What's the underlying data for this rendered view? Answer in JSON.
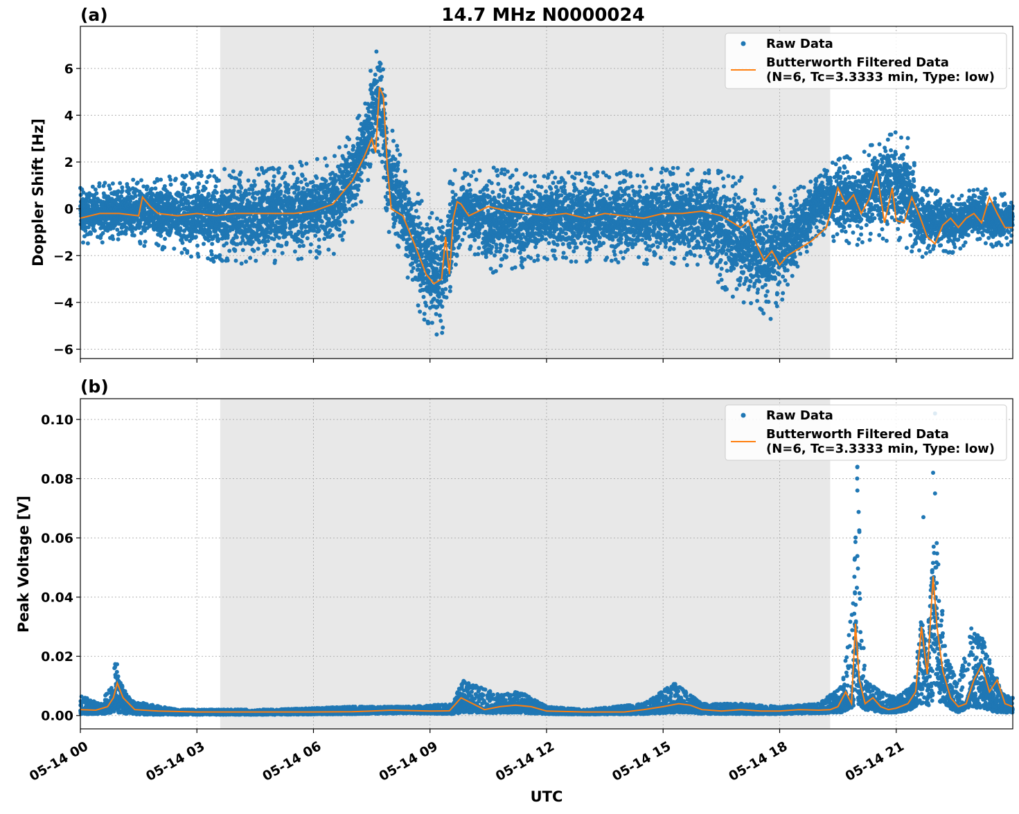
{
  "figure": {
    "title": "14.7 MHz N0000024",
    "xlabel": "UTC"
  },
  "colors": {
    "raw": "#1f77b4",
    "filtered": "#ff7f0e",
    "night_shading": "#e8e8e8"
  },
  "chart_data": [
    {
      "type": "scatter",
      "panel_label": "(a)",
      "ylabel": "Doppler Shift [Hz]",
      "xlim_hours": [
        0,
        24
      ],
      "ylim": [
        -6.4,
        7.8
      ],
      "yticks": [
        -6,
        -4,
        -2,
        0,
        2,
        4,
        6
      ],
      "ytick_labels": [
        "−6",
        "−4",
        "−2",
        "0",
        "2",
        "4",
        "6"
      ],
      "grid": true,
      "legend_position": "top-right",
      "legend": {
        "raw_label": "Raw Data",
        "filtered_label_line1": "Butterworth Filtered Data",
        "filtered_label_line2": "(N=6, Tc=3.3333 min, Type: low)"
      },
      "shaded_span_hours": [
        3.6,
        19.3
      ],
      "series": [
        {
          "name": "Raw Data",
          "style": "points",
          "envelope_hours": [
            0,
            1,
            1.6,
            2.5,
            3.5,
            5,
            6.5,
            7,
            7.3,
            7.6,
            7.75,
            7.9,
            8.3,
            8.8,
            9.3,
            9.55,
            9.8,
            10.5,
            12,
            14,
            16,
            17,
            17.4,
            17.8,
            18.2,
            19,
            19.5,
            20,
            20.5,
            20.9,
            21.3,
            21.6,
            22,
            22.5,
            23,
            23.5,
            24
          ],
          "envelope_upper": [
            1.0,
            1.2,
            1.3,
            1.5,
            1.7,
            1.8,
            2.3,
            3.5,
            4.8,
            6.8,
            7.2,
            4.0,
            2.0,
            0.3,
            -0.5,
            1.8,
            1.5,
            1.8,
            1.6,
            1.6,
            1.9,
            1.5,
            0.8,
            1.2,
            0.6,
            1.5,
            2.4,
            2.2,
            3.0,
            3.6,
            3.2,
            1.0,
            0.8,
            0.6,
            0.9,
            0.8,
            0.6
          ],
          "envelope_lower": [
            -1.5,
            -1.4,
            -1.6,
            -1.9,
            -2.3,
            -2.4,
            -2.0,
            -0.8,
            0.5,
            2.5,
            2.2,
            -0.8,
            -2.5,
            -4.8,
            -5.6,
            -3.5,
            -1.3,
            -2.8,
            -2.3,
            -2.3,
            -2.5,
            -4.2,
            -4.5,
            -4.8,
            -3.5,
            -1.0,
            -1.5,
            -1.6,
            -1.2,
            -1.5,
            -1.7,
            -2.2,
            -1.7,
            -2.0,
            -1.3,
            -1.7,
            -1.5
          ]
        },
        {
          "name": "Butterworth Filtered Data",
          "style": "line",
          "x_hours": [
            0,
            0.5,
            1,
            1.5,
            1.6,
            1.8,
            2,
            2.5,
            3,
            3.5,
            4,
            4.5,
            5,
            5.5,
            6,
            6.5,
            7,
            7.3,
            7.5,
            7.6,
            7.7,
            7.8,
            7.9,
            8.0,
            8.3,
            8.6,
            8.9,
            9.1,
            9.3,
            9.4,
            9.5,
            9.6,
            9.7,
            9.8,
            10,
            10.5,
            11,
            11.5,
            12,
            12.5,
            13,
            13.5,
            14,
            14.5,
            15,
            15.5,
            16,
            16.5,
            17,
            17.2,
            17.4,
            17.6,
            17.8,
            18.0,
            18.2,
            18.4,
            18.8,
            19.2,
            19.5,
            19.7,
            19.9,
            20.1,
            20.3,
            20.5,
            20.7,
            20.9,
            21.0,
            21.2,
            21.4,
            21.6,
            21.8,
            22.0,
            22.2,
            22.4,
            22.6,
            22.8,
            23.0,
            23.2,
            23.4,
            23.6,
            23.8,
            24
          ],
          "y": [
            -0.4,
            -0.2,
            -0.2,
            -0.3,
            0.5,
            0.1,
            -0.2,
            -0.3,
            -0.2,
            -0.3,
            -0.2,
            -0.2,
            -0.2,
            -0.2,
            -0.1,
            0.2,
            1.2,
            2.2,
            3.0,
            2.4,
            5.2,
            4.8,
            1.8,
            0.0,
            -0.3,
            -1.5,
            -2.8,
            -3.2,
            -3.0,
            -1.2,
            -2.8,
            -0.4,
            0.3,
            0.2,
            -0.3,
            0.1,
            -0.1,
            -0.2,
            -0.3,
            -0.2,
            -0.4,
            -0.2,
            -0.3,
            -0.4,
            -0.2,
            -0.2,
            -0.1,
            -0.3,
            -0.8,
            -0.5,
            -1.5,
            -2.2,
            -1.8,
            -2.4,
            -2.0,
            -1.8,
            -1.4,
            -0.8,
            0.9,
            0.2,
            0.6,
            -0.2,
            0.4,
            1.6,
            -0.6,
            0.9,
            -0.5,
            -0.6,
            0.5,
            -0.3,
            -1.2,
            -1.5,
            -0.7,
            -0.4,
            -0.8,
            -0.4,
            -0.2,
            -0.6,
            0.5,
            -0.2,
            -0.8,
            -0.8
          ]
        }
      ]
    },
    {
      "type": "scatter",
      "panel_label": "(b)",
      "ylabel": "Peak Voltage [V]",
      "xlim_hours": [
        0,
        24
      ],
      "ylim": [
        -0.0045,
        0.107
      ],
      "yticks": [
        0.0,
        0.02,
        0.04,
        0.06,
        0.08,
        0.1
      ],
      "ytick_labels": [
        "0.00",
        "0.02",
        "0.04",
        "0.06",
        "0.08",
        "0.10"
      ],
      "grid": true,
      "legend_position": "top-right",
      "legend": {
        "raw_label": "Raw Data",
        "filtered_label_line1": "Butterworth Filtered Data",
        "filtered_label_line2": "(N=6, Tc=3.3333 min, Type: low)"
      },
      "shaded_span_hours": [
        3.6,
        19.3
      ],
      "x_tick_hours": [
        0,
        3,
        6,
        9,
        12,
        15,
        18,
        21
      ],
      "x_tick_labels": [
        "05-14 00",
        "05-14 03",
        "05-14 06",
        "05-14 09",
        "05-14 12",
        "05-14 15",
        "05-14 18",
        "05-14 21"
      ],
      "series": [
        {
          "name": "Raw Data",
          "style": "points",
          "envelope_hours": [
            0,
            0.5,
            0.8,
            0.9,
            1.0,
            1.3,
            1.7,
            2.5,
            5,
            7,
            8.5,
            9.6,
            9.8,
            10.2,
            10.8,
            11.2,
            11.5,
            12,
            13,
            14.5,
            15.3,
            15.6,
            16,
            17,
            18,
            19,
            19.6,
            19.9,
            20.0,
            20.2,
            20.6,
            21,
            21.4,
            21.6,
            21.8,
            22.0,
            22.3,
            22.6,
            22.9,
            23.3,
            23.6,
            24
          ],
          "envelope_upper": [
            0.007,
            0.004,
            0.01,
            0.023,
            0.012,
            0.005,
            0.004,
            0.002,
            0.002,
            0.003,
            0.003,
            0.004,
            0.012,
            0.01,
            0.007,
            0.008,
            0.007,
            0.003,
            0.002,
            0.004,
            0.011,
            0.008,
            0.004,
            0.004,
            0.003,
            0.004,
            0.01,
            0.04,
            0.085,
            0.012,
            0.008,
            0.006,
            0.01,
            0.032,
            0.025,
            0.065,
            0.02,
            0.01,
            0.03,
            0.025,
            0.008,
            0.006
          ],
          "envelope_lower": [
            0.0005,
            0.0005,
            0.0008,
            0.001,
            0.0008,
            0.0005,
            0.0003,
            0.0003,
            0.0003,
            0.0005,
            0.0008,
            0.0005,
            0.001,
            0.001,
            0.0008,
            0.001,
            0.0008,
            0.0005,
            0.0004,
            0.0005,
            0.001,
            0.001,
            0.0006,
            0.0005,
            0.0005,
            0.0008,
            0.001,
            0.003,
            0.004,
            0.002,
            0.001,
            0.001,
            0.002,
            0.004,
            0.003,
            0.006,
            0.003,
            0.001,
            0.003,
            0.002,
            0.001,
            0.001
          ],
          "outliers": [
            [
              20.0,
              0.076
            ],
            [
              20.0,
              0.084
            ],
            [
              22.0,
              0.102
            ],
            [
              22.0,
              0.075
            ],
            [
              21.7,
              0.067
            ],
            [
              21.95,
              0.082
            ],
            [
              20.05,
              0.062
            ]
          ]
        },
        {
          "name": "Butterworth Filtered Data",
          "style": "line",
          "x_hours": [
            0,
            0.4,
            0.7,
            0.85,
            0.95,
            1.1,
            1.4,
            2,
            3,
            4,
            5,
            6,
            7,
            7.5,
            8,
            9,
            9.5,
            9.8,
            10.1,
            10.4,
            10.8,
            11.2,
            11.6,
            12,
            13,
            14,
            14.5,
            15,
            15.4,
            15.7,
            16,
            16.5,
            17,
            17.5,
            18,
            18.5,
            19,
            19.3,
            19.5,
            19.7,
            19.85,
            19.95,
            20.05,
            20.2,
            20.4,
            20.6,
            20.8,
            21,
            21.3,
            21.5,
            21.65,
            21.8,
            21.95,
            22.05,
            22.2,
            22.4,
            22.6,
            22.8,
            23.0,
            23.2,
            23.4,
            23.6,
            23.8,
            24
          ],
          "y": [
            0.002,
            0.0018,
            0.003,
            0.006,
            0.011,
            0.006,
            0.002,
            0.0015,
            0.0012,
            0.0012,
            0.0012,
            0.0012,
            0.0013,
            0.0015,
            0.0018,
            0.0015,
            0.0016,
            0.006,
            0.004,
            0.002,
            0.003,
            0.0035,
            0.003,
            0.0015,
            0.0012,
            0.0012,
            0.002,
            0.003,
            0.004,
            0.0035,
            0.002,
            0.0015,
            0.002,
            0.0015,
            0.0015,
            0.002,
            0.0018,
            0.002,
            0.003,
            0.008,
            0.004,
            0.031,
            0.012,
            0.004,
            0.006,
            0.003,
            0.002,
            0.0025,
            0.004,
            0.008,
            0.03,
            0.014,
            0.047,
            0.03,
            0.015,
            0.006,
            0.003,
            0.004,
            0.012,
            0.017,
            0.008,
            0.012,
            0.004,
            0.003
          ]
        }
      ]
    }
  ]
}
